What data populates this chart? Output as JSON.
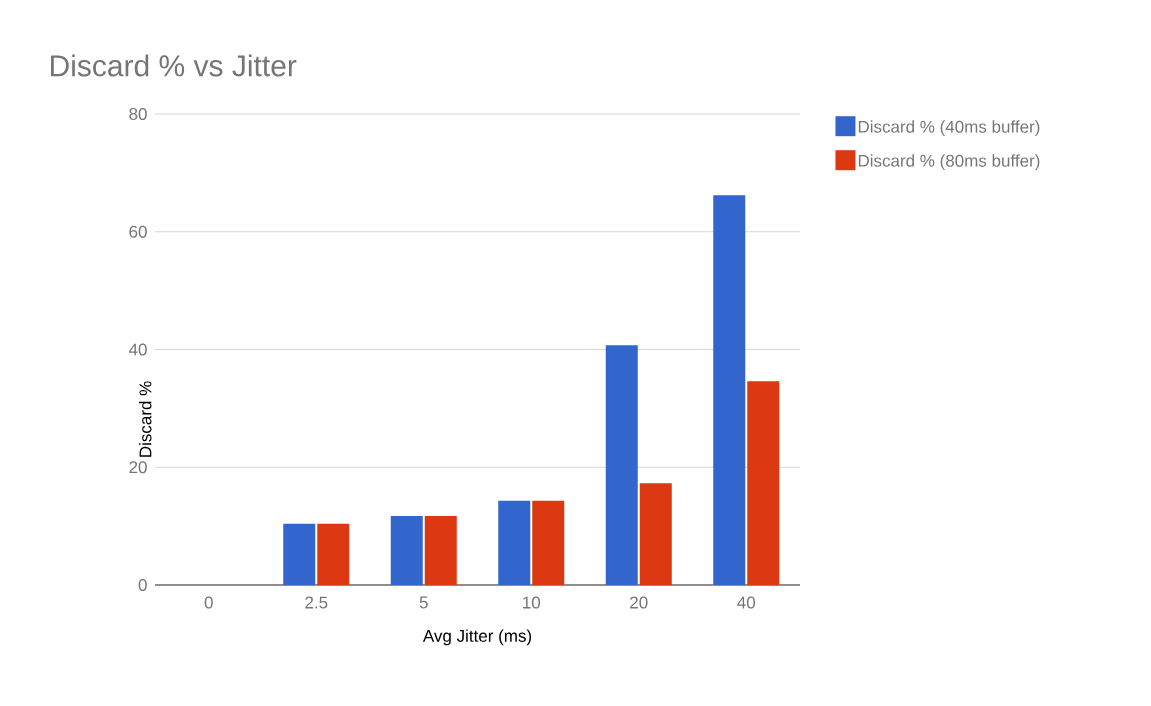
{
  "chart_data": {
    "type": "bar",
    "title": "Discard % vs Jitter",
    "xlabel": "Avg Jitter (ms)",
    "ylabel": "Discard %",
    "categories": [
      "0",
      "2.5",
      "5",
      "10",
      "20",
      "40"
    ],
    "series": [
      {
        "name": "Discard % (40ms buffer)",
        "color": "#3366cc",
        "values": [
          0,
          10.4,
          11.7,
          14.3,
          40.7,
          66.2
        ]
      },
      {
        "name": "Discard % (80ms buffer)",
        "color": "#dc3912",
        "values": [
          0,
          10.4,
          11.7,
          14.3,
          17.3,
          34.6
        ]
      }
    ],
    "ylim": [
      0,
      80
    ],
    "yticks": [
      0,
      20,
      40,
      60,
      80
    ],
    "grid": "y",
    "legend": "top right"
  }
}
